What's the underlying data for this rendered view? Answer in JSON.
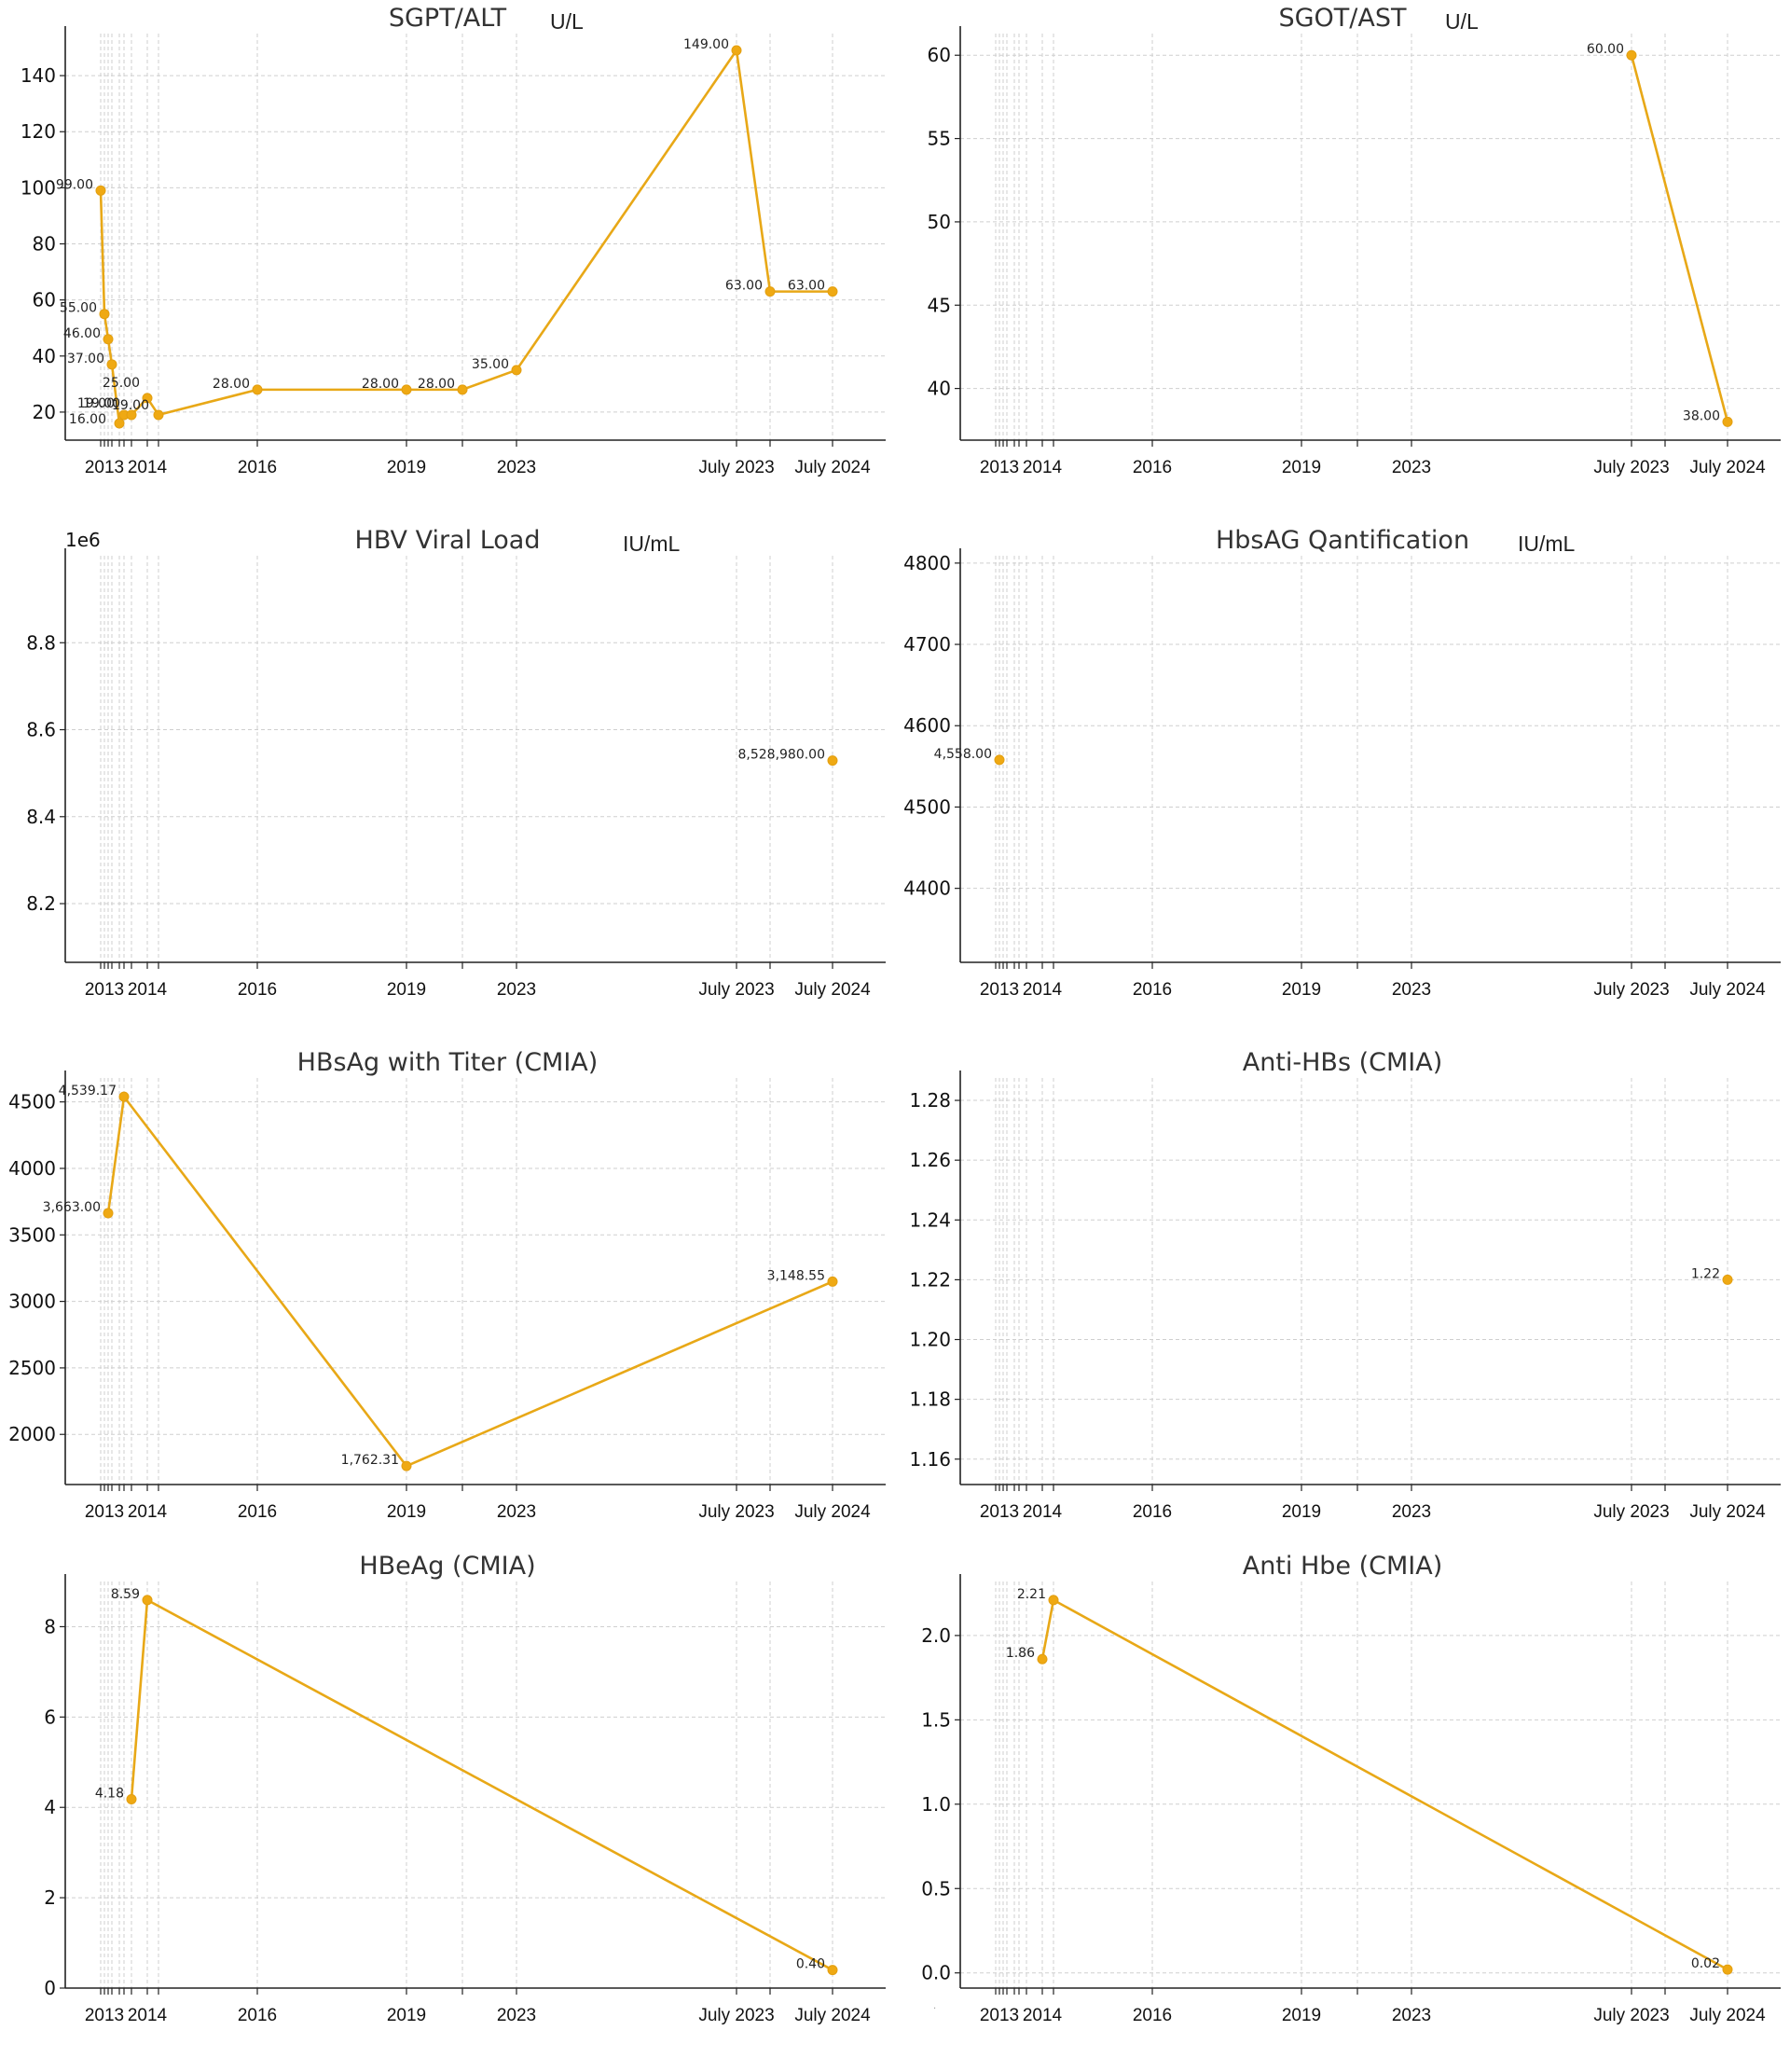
{
  "accent_color": "#efa913",
  "x_dates": [
    "2013-01-01",
    "2013-03-01",
    "2013-05-01",
    "2013-07-01",
    "2013-11-01",
    "2014-01-01",
    "2014-05-01",
    "2014-09-01",
    "2014-12-01",
    "2016-01-01",
    "2019-01-01",
    "2021-01-01",
    "2023-01-01",
    "2023-07-01",
    "2024-01-01",
    "2024-07-01"
  ],
  "x_tick_labels": [
    {
      "label": "2013",
      "date": "2013-03-01"
    },
    {
      "label": "2014",
      "date": "2014-09-01"
    },
    {
      "label": "2016",
      "date": "2016-01-01"
    },
    {
      "label": "2019",
      "date": "2019-01-01"
    },
    {
      "label": "2023",
      "date": "2023-01-01"
    },
    {
      "label": "July 2023",
      "date": "2023-07-01"
    },
    {
      "label": "July 2024",
      "date": "2024-07-01"
    }
  ],
  "chart_data": [
    {
      "id": "sgpt",
      "type": "line",
      "title": "SGPT/ALT",
      "unit": "U/L",
      "xlabel": "",
      "ylabel": "",
      "ylim": [
        10,
        155
      ],
      "yticks": [
        20,
        40,
        60,
        80,
        100,
        120,
        140
      ],
      "grid": true,
      "ytick_format": "int",
      "y_offset_label": "",
      "series": [
        {
          "name": "",
          "points": [
            {
              "x": "2013-01-01",
              "y": 99,
              "label": "99.00"
            },
            {
              "x": "2013-03-01",
              "y": 55,
              "label": "55.00"
            },
            {
              "x": "2013-05-01",
              "y": 46,
              "label": "46.00"
            },
            {
              "x": "2013-07-01",
              "y": 37,
              "label": "37.00"
            },
            {
              "x": "2013-11-01",
              "y": 16,
              "label": "16.00"
            },
            {
              "x": "2014-01-01",
              "y": 19,
              "label": "19.00"
            },
            {
              "x": "2014-05-01",
              "y": 19,
              "label": "19.00"
            },
            {
              "x": "2014-09-01",
              "y": 25,
              "label": "25.00"
            },
            {
              "x": "2014-12-01",
              "y": 19,
              "label": "19.00"
            },
            {
              "x": "2016-01-01",
              "y": 28,
              "label": "28.00"
            },
            {
              "x": "2019-01-01",
              "y": 28,
              "label": "28.00"
            },
            {
              "x": "2021-01-01",
              "y": 28,
              "label": "28.00"
            },
            {
              "x": "2023-01-01",
              "y": 35,
              "label": "35.00"
            },
            {
              "x": "2023-07-01",
              "y": 149,
              "label": "149.00"
            },
            {
              "x": "2024-01-01",
              "y": 63,
              "label": "63.00"
            },
            {
              "x": "2024-07-01",
              "y": 63,
              "label": "63.00"
            }
          ]
        }
      ]
    },
    {
      "id": "sgot",
      "type": "line",
      "title": "SGOT/AST",
      "unit": "U/L",
      "xlabel": "",
      "ylabel": "",
      "ylim": [
        36.9,
        61.3
      ],
      "yticks": [
        40,
        45,
        50,
        55,
        60
      ],
      "grid": true,
      "ytick_format": "int",
      "y_offset_label": "",
      "series": [
        {
          "name": "",
          "points": [
            {
              "x": "2023-07-01",
              "y": 60,
              "label": "60.00"
            },
            {
              "x": "2024-07-01",
              "y": 38,
              "label": "38.00"
            }
          ]
        }
      ]
    },
    {
      "id": "hbv",
      "type": "line",
      "title": "HBV Viral Load",
      "unit": "IU/mL",
      "xlabel": "",
      "ylabel": "",
      "ylim": [
        8065000,
        9000000
      ],
      "yticks": [
        8200000,
        8400000,
        8600000,
        8800000
      ],
      "grid": true,
      "ytick_format": "1e6",
      "y_offset_label": "1e6",
      "series": [
        {
          "name": "",
          "points": [
            {
              "x": "2024-07-01",
              "y": 8528980,
              "label": "8,528,980.00"
            }
          ]
        }
      ]
    },
    {
      "id": "hbsag_q",
      "type": "line",
      "title": "HbsAG Qantification",
      "unit": "IU/mL",
      "xlabel": "",
      "ylabel": "",
      "ylim": [
        4309,
        4809
      ],
      "yticks": [
        4400,
        4500,
        4600,
        4700,
        4800
      ],
      "grid": true,
      "ytick_format": "int",
      "y_offset_label": "",
      "series": [
        {
          "name": "",
          "points": [
            {
              "x": "2013-03-01",
              "y": 4558,
              "label": "4,558.00"
            }
          ]
        }
      ]
    },
    {
      "id": "hbsag_titer",
      "type": "line",
      "title": "HBsAg with Titer (CMIA)",
      "unit": "",
      "xlabel": "",
      "ylabel": "",
      "ylim": [
        1623,
        4680
      ],
      "yticks": [
        2000,
        2500,
        3000,
        3500,
        4000,
        4500
      ],
      "grid": true,
      "ytick_format": "int",
      "y_offset_label": "",
      "series": [
        {
          "name": "",
          "points": [
            {
              "x": "2013-05-01",
              "y": 3663,
              "label": "3,663.00"
            },
            {
              "x": "2014-01-01",
              "y": 4539.17,
              "label": "4,539.17"
            },
            {
              "x": "2019-01-01",
              "y": 1762.31,
              "label": "1,762.31"
            },
            {
              "x": "2024-07-01",
              "y": 3148.55,
              "label": "3,148.55"
            }
          ]
        }
      ]
    },
    {
      "id": "antihbs",
      "type": "line",
      "title": "Anti-HBs (CMIA)",
      "unit": "",
      "xlabel": "",
      "ylabel": "",
      "ylim": [
        1.1515,
        1.2875
      ],
      "yticks": [
        1.16,
        1.18,
        1.2,
        1.22,
        1.24,
        1.26,
        1.28
      ],
      "grid": true,
      "ytick_format": "fixed2",
      "y_offset_label": "",
      "series": [
        {
          "name": "",
          "points": [
            {
              "x": "2024-07-01",
              "y": 1.22,
              "label": "1.22"
            }
          ]
        }
      ]
    },
    {
      "id": "hbeag",
      "type": "line",
      "title": "HBeAg (CMIA)",
      "unit": "",
      "xlabel": "",
      "ylabel": "",
      "ylim": [
        0,
        9.0
      ],
      "yticks": [
        0,
        2,
        4,
        6,
        8
      ],
      "grid": true,
      "ytick_format": "int",
      "y_offset_label": "",
      "series": [
        {
          "name": "",
          "points": [
            {
              "x": "2014-05-01",
              "y": 4.18,
              "label": "4.18"
            },
            {
              "x": "2014-09-01",
              "y": 8.59,
              "label": "8.59"
            },
            {
              "x": "2024-07-01",
              "y": 0.4,
              "label": "0.40"
            }
          ]
        }
      ]
    },
    {
      "id": "antihbe",
      "type": "line",
      "title": "Anti Hbe (CMIA)",
      "unit": "",
      "xlabel": "",
      "ylabel": "",
      "ylim": [
        -0.09,
        2.32
      ],
      "yticks": [
        0.0,
        0.5,
        1.0,
        1.5,
        2.0
      ],
      "grid": true,
      "ytick_format": "fixed1",
      "y_offset_label": "",
      "series": [
        {
          "name": "",
          "points": [
            {
              "x": "2014-09-01",
              "y": 1.86,
              "label": "1.86"
            },
            {
              "x": "2014-12-01",
              "y": 2.21,
              "label": "2.21"
            },
            {
              "x": "2024-07-01",
              "y": 0.02,
              "label": "0.02"
            }
          ]
        }
      ]
    }
  ]
}
